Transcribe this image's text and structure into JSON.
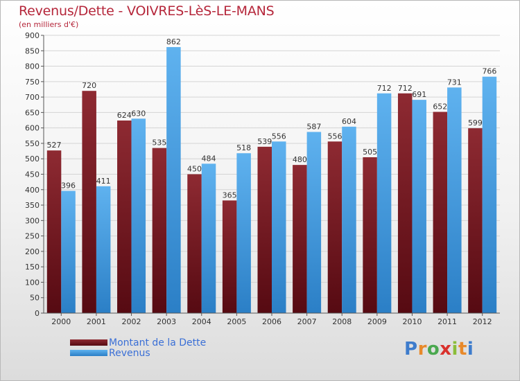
{
  "title": "Revenus/Dette - VOIVRES-LèS-LE-MANS",
  "subtitle": "(en milliers d'€)",
  "logo": {
    "p": "P",
    "r": "r",
    "o": "o",
    "x": "x",
    "i1": "i",
    "t": "t",
    "i2": "i"
  },
  "colors": {
    "dette": "#7a1a22",
    "revenus": "#3f9be3",
    "axis": "#555555",
    "grid": "#d4d4d4",
    "value_label": "#333333",
    "title": "#b5263a",
    "legend_text": "#3a6fd6"
  },
  "chart_data": {
    "type": "bar",
    "title": "Revenus/Dette - VOIVRES-LèS-LE-MANS",
    "subtitle": "(en milliers d'€)",
    "categories": [
      "2000",
      "2001",
      "2002",
      "2003",
      "2004",
      "2005",
      "2006",
      "2007",
      "2008",
      "2009",
      "2010",
      "2011",
      "2012"
    ],
    "series": [
      {
        "name": "Montant de la Dette",
        "values": [
          527,
          720,
          624,
          535,
          450,
          365,
          539,
          480,
          556,
          505,
          712,
          652,
          599
        ]
      },
      {
        "name": "Revenus",
        "values": [
          396,
          411,
          630,
          862,
          484,
          518,
          556,
          587,
          604,
          712,
          691,
          731,
          766
        ]
      }
    ],
    "ylim": [
      0,
      900
    ],
    "yticks": [
      0,
      50,
      100,
      150,
      200,
      250,
      300,
      350,
      400,
      450,
      500,
      550,
      600,
      650,
      700,
      750,
      800,
      850,
      900
    ],
    "grid": true,
    "legend": "bottom-left"
  }
}
